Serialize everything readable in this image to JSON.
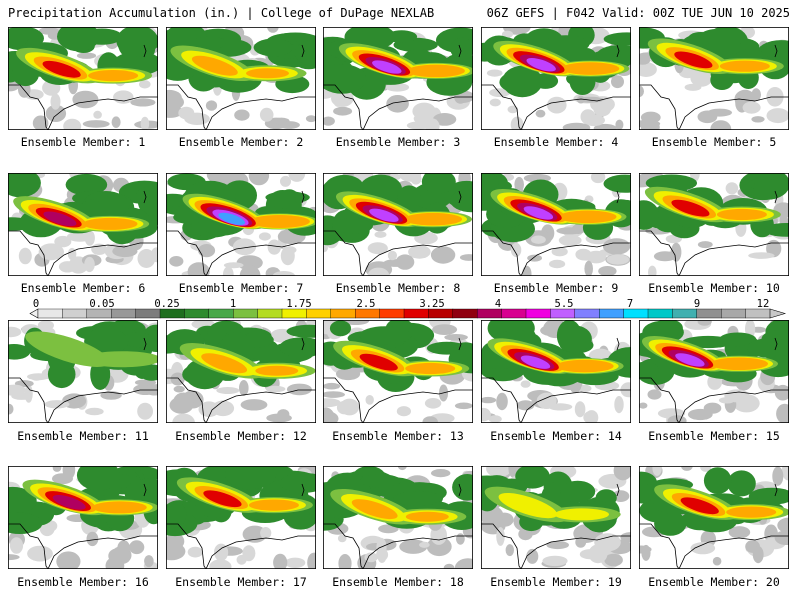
{
  "header": {
    "left_title": "Precipitation Accumulation (in.) | College of DuPage NEXLAB",
    "right_title": "06Z GEFS | F042 Valid: 00Z TUE JUN 10 2025"
  },
  "colorbar": {
    "tick_labels": [
      "0",
      "0.05",
      "0.25",
      "1",
      "1.75",
      "2.5",
      "3.25",
      "4",
      "5.5",
      "7",
      "9",
      "12"
    ],
    "colors": [
      "#e8e8e8",
      "#d0d0d0",
      "#b4b4b4",
      "#989898",
      "#7c7c7c",
      "#1e6e1e",
      "#2e8b2e",
      "#48a848",
      "#7cc040",
      "#b4dc20",
      "#f0f000",
      "#ffd000",
      "#ffa800",
      "#ff7800",
      "#ff3c00",
      "#e00000",
      "#b80000",
      "#900010",
      "#b00060",
      "#d80090",
      "#f000e0",
      "#c060ff",
      "#8080ff",
      "#40a0ff",
      "#00e0ff",
      "#00c8c8",
      "#40b0b0",
      "#909090",
      "#a8a8a8",
      "#c0c0c0"
    ]
  },
  "members": [
    {
      "label": "Ensemble Member: 1",
      "max_level": 4
    },
    {
      "label": "Ensemble Member: 2",
      "max_level": 3
    },
    {
      "label": "Ensemble Member: 3",
      "max_level": 6
    },
    {
      "label": "Ensemble Member: 4",
      "max_level": 6
    },
    {
      "label": "Ensemble Member: 5",
      "max_level": 4
    },
    {
      "label": "Ensemble Member: 6",
      "max_level": 5
    },
    {
      "label": "Ensemble Member: 7",
      "max_level": 7
    },
    {
      "label": "Ensemble Member: 8",
      "max_level": 6
    },
    {
      "label": "Ensemble Member: 9",
      "max_level": 6
    },
    {
      "label": "Ensemble Member: 10",
      "max_level": 4
    },
    {
      "label": "Ensemble Member: 11",
      "max_level": 1
    },
    {
      "label": "Ensemble Member: 12",
      "max_level": 3
    },
    {
      "label": "Ensemble Member: 13",
      "max_level": 4
    },
    {
      "label": "Ensemble Member: 14",
      "max_level": 6
    },
    {
      "label": "Ensemble Member: 15",
      "max_level": 6
    },
    {
      "label": "Ensemble Member: 16",
      "max_level": 5
    },
    {
      "label": "Ensemble Member: 17",
      "max_level": 4
    },
    {
      "label": "Ensemble Member: 18",
      "max_level": 3
    },
    {
      "label": "Ensemble Member: 19",
      "max_level": 2
    },
    {
      "label": "Ensemble Member: 20",
      "max_level": 4
    }
  ]
}
